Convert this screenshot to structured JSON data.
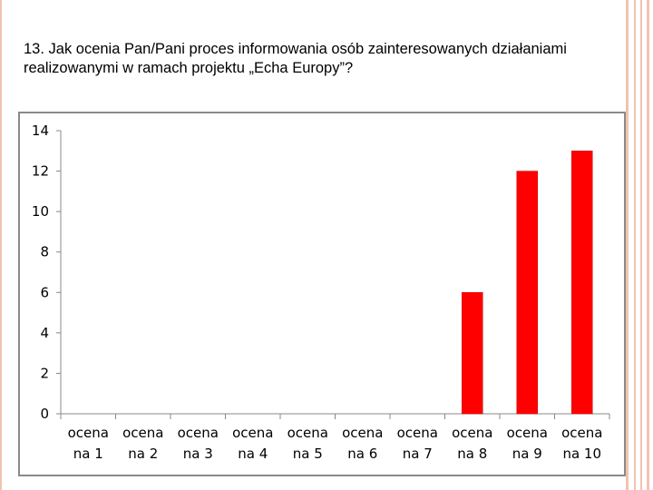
{
  "question": {
    "line1": "13. Jak ocenia Pan/Pani proces informowania osób zainteresowanych działaniami",
    "line2": "realizowanymi w ramach projektu „Echa Europy”?"
  },
  "colors": {
    "bar": "#ff0000",
    "bar_edge": "#cc0000",
    "decor": "#f2c3b0",
    "frame": "#8a8a8a"
  },
  "chart_data": {
    "type": "bar",
    "categories": [
      [
        "ocena",
        "na 1"
      ],
      [
        "ocena",
        "na 2"
      ],
      [
        "ocena",
        "na 3"
      ],
      [
        "ocena",
        "na 4"
      ],
      [
        "ocena",
        "na 5"
      ],
      [
        "ocena",
        "na 6"
      ],
      [
        "ocena",
        "na 7"
      ],
      [
        "ocena",
        "na 8"
      ],
      [
        "ocena",
        "na 9"
      ],
      [
        "ocena",
        "na 10"
      ]
    ],
    "values": [
      0,
      0,
      0,
      0,
      0,
      0,
      0,
      6,
      12,
      13
    ],
    "yticks": [
      "0",
      "2",
      "4",
      "6",
      "8",
      "10",
      "12",
      "14"
    ],
    "ylim": [
      0,
      14
    ],
    "grid": false,
    "legend": "none"
  }
}
